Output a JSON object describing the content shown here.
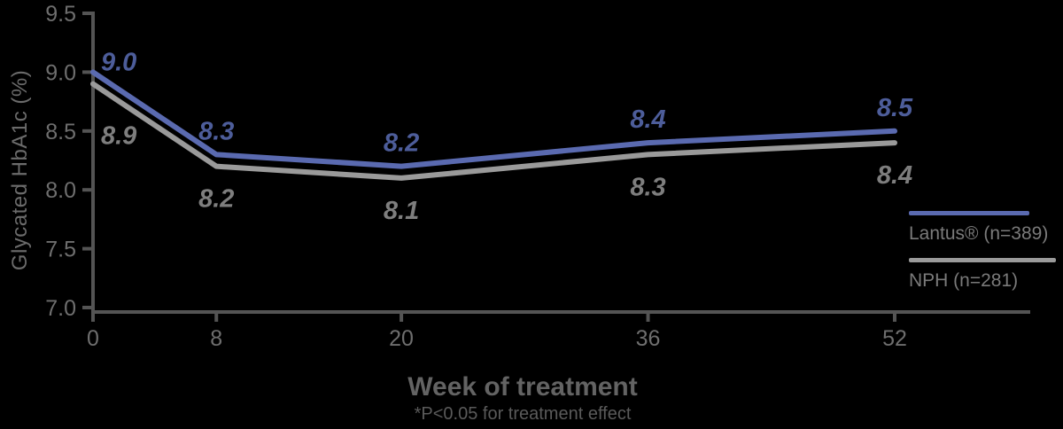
{
  "colors": {
    "blue_line": "#5a6ab0",
    "blue_text": "#4d5d9a",
    "gray_line": "#9a9a9a",
    "gray_text": "#7e7e7e",
    "axis": "#545454",
    "tick_text": "#6e6e6e",
    "background": "#000000"
  },
  "chart_data": {
    "type": "line",
    "x": [
      0,
      8,
      20,
      36,
      52
    ],
    "x_tick_labels": [
      "0",
      "8",
      "20",
      "36",
      "52"
    ],
    "xlim": [
      0,
      52
    ],
    "y_tick_labels": [
      "9.5",
      "9.0",
      "8.5",
      "8.0",
      "7.5",
      "7.0"
    ],
    "ylim": [
      7.0,
      9.5
    ],
    "grid": false,
    "legend_position": "right",
    "xlabel": "Week of treatment",
    "x_sublabel": "*P<0.05 for treatment effect",
    "ylabel": "Glycated HbA1c (%)",
    "series": [
      {
        "name": "Lantus® (n=389)",
        "color_key": "blue",
        "values": [
          9.0,
          8.3,
          8.2,
          8.4,
          8.5
        ],
        "point_labels": [
          "9.0",
          "8.3",
          "8.2",
          "8.4",
          "8.5"
        ],
        "label_position": "above"
      },
      {
        "name": "NPH (n=281)",
        "color_key": "gray",
        "values": [
          8.9,
          8.2,
          8.1,
          8.3,
          8.4
        ],
        "point_labels": [
          "8.9",
          "8.2",
          "8.1",
          "8.3",
          "8.4"
        ],
        "label_position": "below"
      }
    ]
  }
}
